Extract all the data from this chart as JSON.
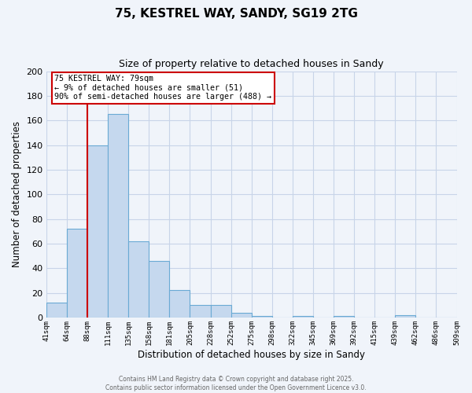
{
  "title": "75, KESTREL WAY, SANDY, SG19 2TG",
  "subtitle": "Size of property relative to detached houses in Sandy",
  "xlabel": "Distribution of detached houses by size in Sandy",
  "ylabel": "Number of detached properties",
  "bar_heights": [
    12,
    72,
    140,
    165,
    62,
    46,
    22,
    10,
    10,
    4,
    1,
    0,
    1,
    0,
    1,
    0,
    0,
    2,
    0,
    0
  ],
  "x_tick_labels": [
    "41sqm",
    "64sqm",
    "88sqm",
    "111sqm",
    "135sqm",
    "158sqm",
    "181sqm",
    "205sqm",
    "228sqm",
    "252sqm",
    "275sqm",
    "298sqm",
    "322sqm",
    "345sqm",
    "369sqm",
    "392sqm",
    "415sqm",
    "439sqm",
    "462sqm",
    "486sqm",
    "509sqm"
  ],
  "bar_color": "#c5d8ee",
  "bar_edge_color": "#6aaad4",
  "vline_color": "#cc0000",
  "vline_x_index": 2,
  "ylim": [
    0,
    200
  ],
  "yticks": [
    0,
    20,
    40,
    60,
    80,
    100,
    120,
    140,
    160,
    180,
    200
  ],
  "annotation_title": "75 KESTREL WAY: 79sqm",
  "annotation_line1": "← 9% of detached houses are smaller (51)",
  "annotation_line2": "90% of semi-detached houses are larger (488) →",
  "annotation_box_color": "white",
  "annotation_box_edge": "#cc0000",
  "footer_line1": "Contains HM Land Registry data © Crown copyright and database right 2025.",
  "footer_line2": "Contains public sector information licensed under the Open Government Licence v3.0.",
  "background_color": "#f0f4fa",
  "grid_color": "#c8d4e8",
  "title_fontsize": 11,
  "subtitle_fontsize": 9
}
